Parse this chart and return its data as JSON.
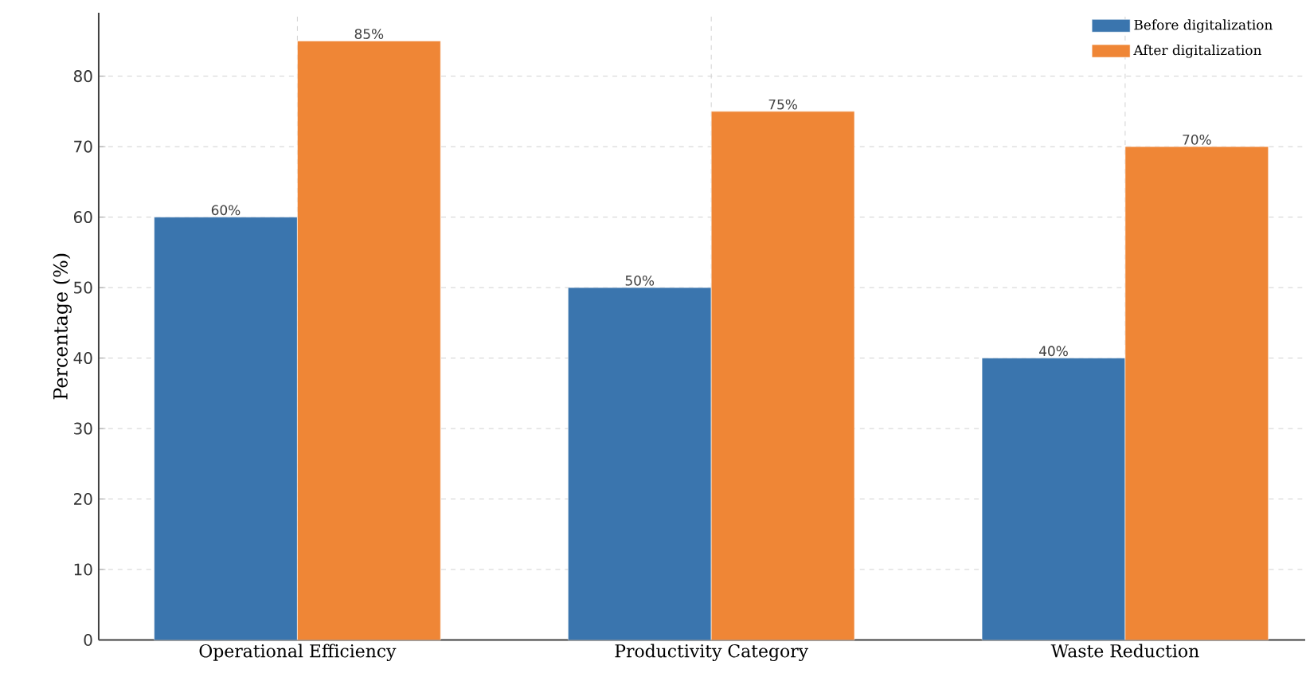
{
  "chart_data": {
    "type": "bar",
    "categories": [
      "Operational Efficiency",
      "Productivity Category",
      "Waste Reduction"
    ],
    "ylabel": "Percentage (%)",
    "series": [
      {
        "name": "Before digitalization",
        "color": "#3a75ae",
        "values": [
          60,
          50,
          40
        ],
        "value_labels": [
          "60%",
          "50%",
          "40%"
        ]
      },
      {
        "name": "After digitalization",
        "color": "#ef8636",
        "values": [
          85,
          75,
          70
        ],
        "value_labels": [
          "85%",
          "75%",
          "70%"
        ]
      }
    ],
    "ylim": [
      0,
      89
    ],
    "yticks": [
      0,
      10,
      20,
      30,
      40,
      50,
      60,
      70,
      80
    ],
    "grid": true,
    "legend": "top right"
  }
}
